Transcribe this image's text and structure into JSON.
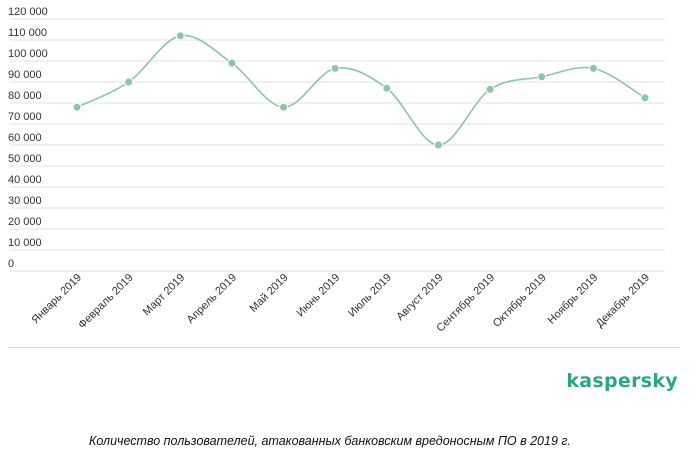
{
  "colors": {
    "series": "#8cc6a5",
    "grid": "#e3e3e3",
    "logo": "#2aa686",
    "text": "#333333"
  },
  "caption": "Количество пользователей, атакованных банковским вредоносным ПО в 2019 г.",
  "logo": "kaspersky",
  "chart_data": {
    "type": "line",
    "title": "",
    "xlabel": "",
    "ylabel": "",
    "ylim": [
      0,
      120000
    ],
    "ytick_values": [
      0,
      10000,
      20000,
      30000,
      40000,
      50000,
      60000,
      70000,
      80000,
      90000,
      100000,
      110000,
      120000
    ],
    "ytick_labels": [
      "0",
      "10 000",
      "20 000",
      "30 000",
      "40 000",
      "50 000",
      "60 000",
      "70 000",
      "80 000",
      "90 000",
      "100 000",
      "110 000",
      "120 000"
    ],
    "grid": true,
    "smooth": true,
    "categories": [
      "Январь 2019",
      "Февраль 2019",
      "Март 2019",
      "Апрель 2019",
      "Май 2019",
      "Июнь 2019",
      "Июль 2019",
      "Август 2019",
      "Сентябрь 2019",
      "Октябрь 2019",
      "Ноябрь 2019",
      "Декабрь 2019"
    ],
    "series": [
      {
        "values": [
          78000,
          90000,
          112000,
          99000,
          78000,
          96500,
          87000,
          60000,
          86500,
          92500,
          96500,
          82500
        ]
      }
    ]
  }
}
